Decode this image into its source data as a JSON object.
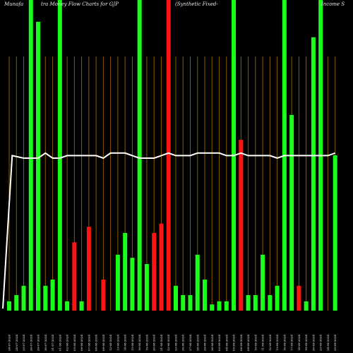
{
  "chart_data": {
    "type": "bar",
    "title_parts": [
      "Munafa",
      "tra  Money Flow  Charts for GJP",
      "(Synthetic Fixed-",
      "Income  S"
    ],
    "colors": {
      "up": "#19ff19",
      "down": "#ff1414",
      "line": "#ffffff",
      "grid": "#8a5a00",
      "background": "#000000"
    },
    "ylim": [
      0,
      100
    ],
    "categories": [
      "24-07-2024",
      "24-07-2024",
      "25-07-2024",
      "26-07-2024",
      "29-07-2024",
      "30-07-2024",
      "31-07-2024",
      "01-08-2024",
      "02-08-2024",
      "05-08-2024",
      "06-08-2024",
      "07-08-2024",
      "08-08-2024",
      "09-08-2024",
      "12-08-2024",
      "13-08-2024",
      "14-08-2024",
      "15-08-2024",
      "16-08-2024",
      "19-08-2024",
      "20-08-2024",
      "21-08-2024",
      "22-08-2024",
      "23-08-2024",
      "26-08-2024",
      "27-08-2024",
      "28-08-2024",
      "29-08-2024",
      "30-08-2024",
      "03-09-2024",
      "04-09-2024",
      "05-09-2024",
      "06-09-2024",
      "09-09-2024",
      "10-09-2024",
      "11-09-2024",
      "12-09-2024",
      "13-09-2024",
      "16-09-2024",
      "17-09-2024",
      "18-09-2024",
      "19-09-2024",
      "20-09-2024",
      "23-09-2024",
      "24-09-2024",
      "25-09-2024"
    ],
    "series": [
      {
        "values": [
          3,
          5,
          8,
          100,
          93,
          8,
          10,
          100,
          3,
          22,
          3,
          27,
          0,
          10,
          0,
          18,
          25,
          17,
          100,
          15,
          25,
          28,
          100,
          8,
          5,
          5,
          18,
          10,
          2,
          3,
          3,
          100,
          55,
          5,
          5,
          18,
          5,
          8,
          100,
          63,
          8,
          3,
          88,
          100,
          0,
          50
        ],
        "directions": [
          "up",
          "up",
          "up",
          "up",
          "up",
          "up",
          "up",
          "up",
          "up",
          "down",
          "up",
          "down",
          "up",
          "down",
          "up",
          "up",
          "up",
          "up",
          "up",
          "up",
          "down",
          "down",
          "down",
          "up",
          "up",
          "up",
          "up",
          "up",
          "up",
          "up",
          "up",
          "up",
          "down",
          "up",
          "up",
          "up",
          "up",
          "up",
          "up",
          "up",
          "down",
          "up",
          "up",
          "up",
          "up",
          "up"
        ]
      },
      {
        "values": [
          null,
          61,
          60,
          60,
          60,
          62,
          60,
          60,
          61,
          61,
          61,
          61,
          61,
          60,
          62,
          62,
          62,
          61,
          60,
          60,
          60,
          61,
          62,
          61,
          61,
          61,
          62,
          62,
          62,
          62,
          61,
          61,
          62,
          61,
          61,
          61,
          61,
          60,
          61,
          61,
          61,
          61,
          61,
          61,
          61,
          62
        ]
      }
    ]
  }
}
